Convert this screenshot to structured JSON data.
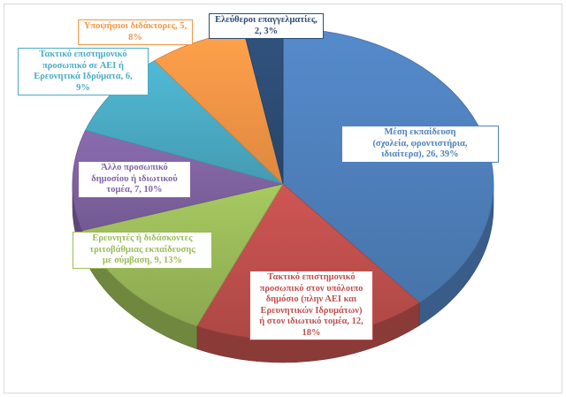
{
  "chart_data": {
    "type": "pie",
    "title": "",
    "slices": [
      {
        "label": "Μέση εκπαίδευση (σχολεία, φροντιστήρια, ιδιαίτερα)",
        "value": 26,
        "percent": 39,
        "color": "#4f81bd",
        "display": "Μέση εκπαίδευση\n(σχολεία, φροντιστήρια,\nιδιαίτερα), 26, 39%"
      },
      {
        "label": "Τακτικό επιστημονικό προσωπικό στον υπόλοιπο δημόσιο (πλην ΑΕΙ και Ερευνητικών Ιδρυμάτων) ή στον ιδιωτικό τομέα",
        "value": 12,
        "percent": 18,
        "color": "#c0504d",
        "display": "Τακτικό επιστημονικό\nπροσωπικό στον υπόλοιπο\nδημόσιο (πλην ΑΕΙ και\nΕρευνητικών Ιδρυμάτων)\nή στον ιδιωτικό τομέα, 12,\n18%"
      },
      {
        "label": "Ερευνητές ή διδάσκοντες τριτοβάθμιας εκπαίδευσης με σύμβαση",
        "value": 9,
        "percent": 13,
        "color": "#9bbb59",
        "display": "Ερευνητές ή διδάσκοντες\nτριτοβάθμιας εκπαίδευσης\nμε σύμβαση, 9, 13%"
      },
      {
        "label": "Άλλο προσωπικό δημοσίου ή ιδιωτικού τομέα",
        "value": 7,
        "percent": 10,
        "color": "#8064a2",
        "display": "Άλλο προσωπικό\nδημοσίου ή ιδιωτικού\nτομέα, 7, 10%"
      },
      {
        "label": "Τακτικό επιστημονικό προσωπικό σε ΑΕΙ ή Ερευνητικά Ιδρύματα",
        "value": 6,
        "percent": 9,
        "color": "#4bacc6",
        "display": "Τακτικό επιστημονικό\nπροσωπικό σε ΑΕΙ ή\nΕρευνητικά Ιδρύματα, 6,\n9%"
      },
      {
        "label": "Υποψήφιοι διδάκτορες",
        "value": 5,
        "percent": 8,
        "color": "#f79646",
        "display": "Υποψήφιοι διδάκτορες, 5,\n8%"
      },
      {
        "label": "Ελεύθεροι επαγγελματίες",
        "value": 2,
        "percent": 3,
        "color": "#2c4d75",
        "display": "Ελεύθεροι επαγγελματίες,\n2, 3%"
      }
    ],
    "legend": "none",
    "style": "3d-pie"
  }
}
